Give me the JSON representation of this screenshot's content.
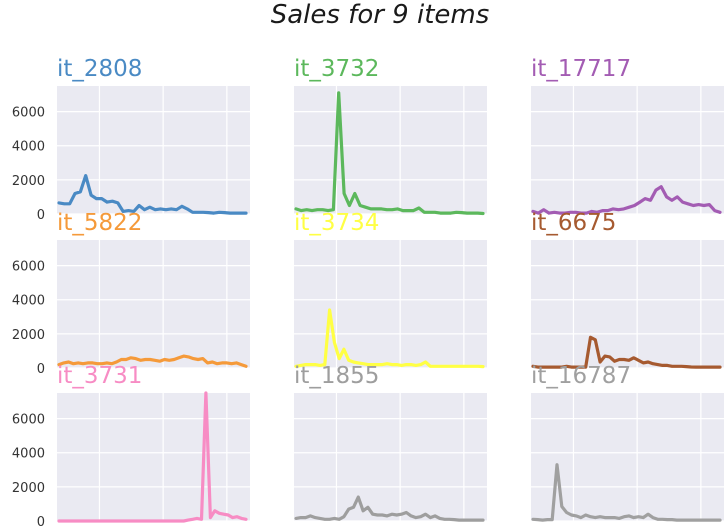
{
  "title": "Sales for 9 items",
  "chart_data": [
    {
      "type": "line",
      "title": "it_2808",
      "color": "#4a8ac4",
      "ylim": [
        0,
        7500
      ],
      "yticks": [
        0,
        2000,
        4000,
        6000
      ],
      "values": [
        650,
        600,
        600,
        1200,
        1300,
        2250,
        1100,
        900,
        900,
        700,
        750,
        650,
        150,
        200,
        150,
        500,
        250,
        400,
        250,
        300,
        250,
        300,
        250,
        450,
        300,
        100,
        100,
        100,
        80,
        50,
        100,
        80,
        50,
        50,
        50,
        50
      ]
    },
    {
      "type": "line",
      "title": "it_3732",
      "color": "#5cb85c",
      "ylim": [
        0,
        7500
      ],
      "yticks": [
        0,
        2000,
        4000,
        6000
      ],
      "values": [
        300,
        200,
        250,
        200,
        250,
        250,
        200,
        250,
        7100,
        1200,
        500,
        1200,
        500,
        400,
        300,
        300,
        300,
        250,
        250,
        300,
        200,
        200,
        200,
        350,
        100,
        100,
        100,
        50,
        50,
        50,
        100,
        80,
        50,
        50,
        50,
        30
      ]
    },
    {
      "type": "line",
      "title": "it_17717",
      "color": "#a35cb3",
      "ylim": [
        0,
        7500
      ],
      "yticks": [
        0,
        2000,
        4000,
        6000
      ],
      "values": [
        150,
        50,
        250,
        50,
        100,
        50,
        50,
        100,
        100,
        50,
        50,
        150,
        100,
        200,
        200,
        300,
        250,
        300,
        400,
        500,
        700,
        900,
        800,
        1400,
        1600,
        1000,
        800,
        1000,
        700,
        600,
        500,
        550,
        500,
        550,
        200,
        100
      ]
    },
    {
      "type": "line",
      "title": "it_5822",
      "color": "#f59a3a",
      "ylim": [
        0,
        7500
      ],
      "yticks": [
        0,
        2000,
        4000,
        6000
      ],
      "values": [
        200,
        300,
        350,
        250,
        300,
        250,
        300,
        300,
        250,
        250,
        300,
        250,
        350,
        500,
        500,
        600,
        550,
        450,
        500,
        500,
        450,
        400,
        500,
        450,
        500,
        600,
        700,
        650,
        550,
        500,
        550,
        300,
        350,
        250,
        300,
        300,
        250,
        300,
        200,
        100
      ]
    },
    {
      "type": "line",
      "title": "it_3734",
      "color": "#ffff44",
      "ylim": [
        0,
        7500
      ],
      "yticks": [
        0,
        2000,
        4000,
        6000
      ],
      "values": [
        100,
        150,
        200,
        200,
        200,
        150,
        200,
        3400,
        1500,
        550,
        1100,
        450,
        350,
        300,
        250,
        200,
        200,
        200,
        200,
        250,
        200,
        200,
        150,
        200,
        200,
        150,
        200,
        350,
        100,
        100,
        100,
        100,
        100,
        100,
        100,
        100,
        100,
        100,
        100,
        80
      ]
    },
    {
      "type": "line",
      "title": "it_6675",
      "color": "#a65a30",
      "ylim": [
        0,
        7500
      ],
      "yticks": [
        0,
        2000,
        4000,
        6000
      ],
      "values": [
        100,
        50,
        50,
        50,
        50,
        50,
        50,
        100,
        50,
        50,
        50,
        50,
        1800,
        1650,
        350,
        700,
        650,
        400,
        500,
        500,
        450,
        600,
        450,
        300,
        350,
        250,
        200,
        150,
        150,
        100,
        100,
        100,
        80,
        60,
        50,
        50,
        50,
        50,
        50,
        50
      ]
    },
    {
      "type": "line",
      "title": "it_3731",
      "color": "#f78cc4",
      "ylim": [
        0,
        7500
      ],
      "yticks": [
        0,
        2000,
        4000,
        6000
      ],
      "values": [
        0,
        0,
        0,
        0,
        0,
        0,
        0,
        0,
        0,
        0,
        0,
        0,
        0,
        0,
        0,
        0,
        0,
        0,
        0,
        0,
        0,
        0,
        0,
        0,
        0,
        0,
        0,
        0,
        0,
        50,
        100,
        150,
        100,
        7500,
        200,
        600,
        450,
        400,
        350,
        200,
        250,
        150,
        100
      ]
    },
    {
      "type": "line",
      "title": "it_1855",
      "color": "#9e9e9e",
      "ylim": [
        0,
        7500
      ],
      "yticks": [
        0,
        2000,
        4000,
        6000
      ],
      "values": [
        150,
        200,
        200,
        300,
        200,
        150,
        100,
        100,
        150,
        100,
        250,
        700,
        800,
        1400,
        600,
        800,
        400,
        350,
        350,
        300,
        400,
        350,
        400,
        500,
        300,
        200,
        250,
        400,
        200,
        300,
        150,
        100,
        100,
        80,
        50,
        50,
        50,
        50,
        50,
        50
      ]
    },
    {
      "type": "line",
      "title": "it_16787",
      "color": "#a0a0a0",
      "ylim": [
        0,
        7500
      ],
      "yticks": [
        0,
        2000,
        4000,
        6000
      ],
      "values": [
        100,
        80,
        50,
        80,
        80,
        3300,
        850,
        500,
        350,
        300,
        200,
        350,
        250,
        200,
        250,
        200,
        200,
        200,
        150,
        250,
        300,
        200,
        250,
        200,
        400,
        200,
        100,
        100,
        80,
        80,
        50,
        50,
        50,
        50,
        50,
        50,
        50,
        50,
        50,
        50
      ]
    }
  ]
}
